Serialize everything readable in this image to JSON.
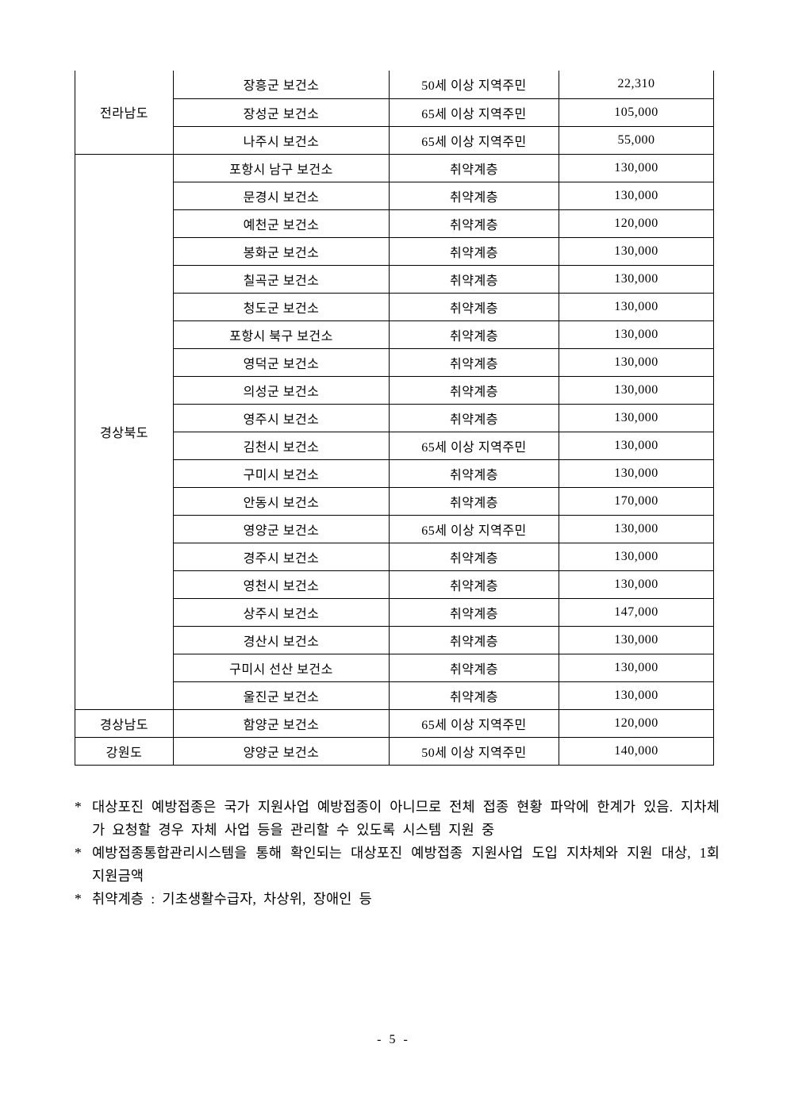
{
  "table": {
    "column_semantics": [
      "province",
      "health_center",
      "target_population",
      "amount_per_dose"
    ],
    "groups": [
      {
        "province": "전라남도",
        "rows": [
          {
            "center": "장흥군 보건소",
            "target": "50세 이상 지역주민",
            "amount": "22,310"
          },
          {
            "center": "장성군 보건소",
            "target": "65세 이상 지역주민",
            "amount": "105,000"
          },
          {
            "center": "나주시 보건소",
            "target": "65세 이상 지역주민",
            "amount": "55,000"
          }
        ]
      },
      {
        "province": "경상북도",
        "rows": [
          {
            "center": "포항시 남구 보건소",
            "target": "취약계층",
            "amount": "130,000"
          },
          {
            "center": "문경시 보건소",
            "target": "취약계층",
            "amount": "130,000"
          },
          {
            "center": "예천군 보건소",
            "target": "취약계층",
            "amount": "120,000"
          },
          {
            "center": "봉화군 보건소",
            "target": "취약계층",
            "amount": "130,000"
          },
          {
            "center": "칠곡군 보건소",
            "target": "취약계층",
            "amount": "130,000"
          },
          {
            "center": "청도군 보건소",
            "target": "취약계층",
            "amount": "130,000"
          },
          {
            "center": "포항시 북구 보건소",
            "target": "취약계층",
            "amount": "130,000"
          },
          {
            "center": "영덕군 보건소",
            "target": "취약계층",
            "amount": "130,000"
          },
          {
            "center": "의성군 보건소",
            "target": "취약계층",
            "amount": "130,000"
          },
          {
            "center": "영주시 보건소",
            "target": "취약계층",
            "amount": "130,000"
          },
          {
            "center": "김천시 보건소",
            "target": "65세 이상 지역주민",
            "amount": "130,000"
          },
          {
            "center": "구미시 보건소",
            "target": "취약계층",
            "amount": "130,000"
          },
          {
            "center": "안동시 보건소",
            "target": "취약계층",
            "amount": "170,000"
          },
          {
            "center": "영양군 보건소",
            "target": "65세 이상 지역주민",
            "amount": "130,000"
          },
          {
            "center": "경주시 보건소",
            "target": "취약계층",
            "amount": "130,000"
          },
          {
            "center": "영천시 보건소",
            "target": "취약계층",
            "amount": "130,000"
          },
          {
            "center": "상주시 보건소",
            "target": "취약계층",
            "amount": "147,000"
          },
          {
            "center": "경산시 보건소",
            "target": "취약계층",
            "amount": "130,000"
          },
          {
            "center": "구미시 선산 보건소",
            "target": "취약계층",
            "amount": "130,000"
          },
          {
            "center": "울진군 보건소",
            "target": "취약계층",
            "amount": "130,000"
          }
        ]
      },
      {
        "province": "경상남도",
        "rows": [
          {
            "center": "함양군 보건소",
            "target": "65세 이상 지역주민",
            "amount": "120,000"
          }
        ]
      },
      {
        "province": "강원도",
        "rows": [
          {
            "center": "양양군 보건소",
            "target": "50세 이상 지역주민",
            "amount": "140,000"
          }
        ]
      }
    ]
  },
  "footnotes": [
    {
      "marker": "*",
      "text": "대상포진 예방접종은 국가 지원사업 예방접종이 아니므로 전체 접종 현황 파악에 한계가 있음. 지차체가 요청할 경우 자체 사업 등을 관리할 수 있도록 시스템 지원 중"
    },
    {
      "marker": "*",
      "text": "예방접종통합관리시스템을 통해 확인되는 대상포진 예방접종 지원사업 도입 지차체와 지원 대상, 1회 지원금액"
    },
    {
      "marker": "*",
      "text": "취약계층 : 기초생활수급자, 차상위, 장애인 등"
    }
  ],
  "page": {
    "number_label": "- 5 -"
  }
}
